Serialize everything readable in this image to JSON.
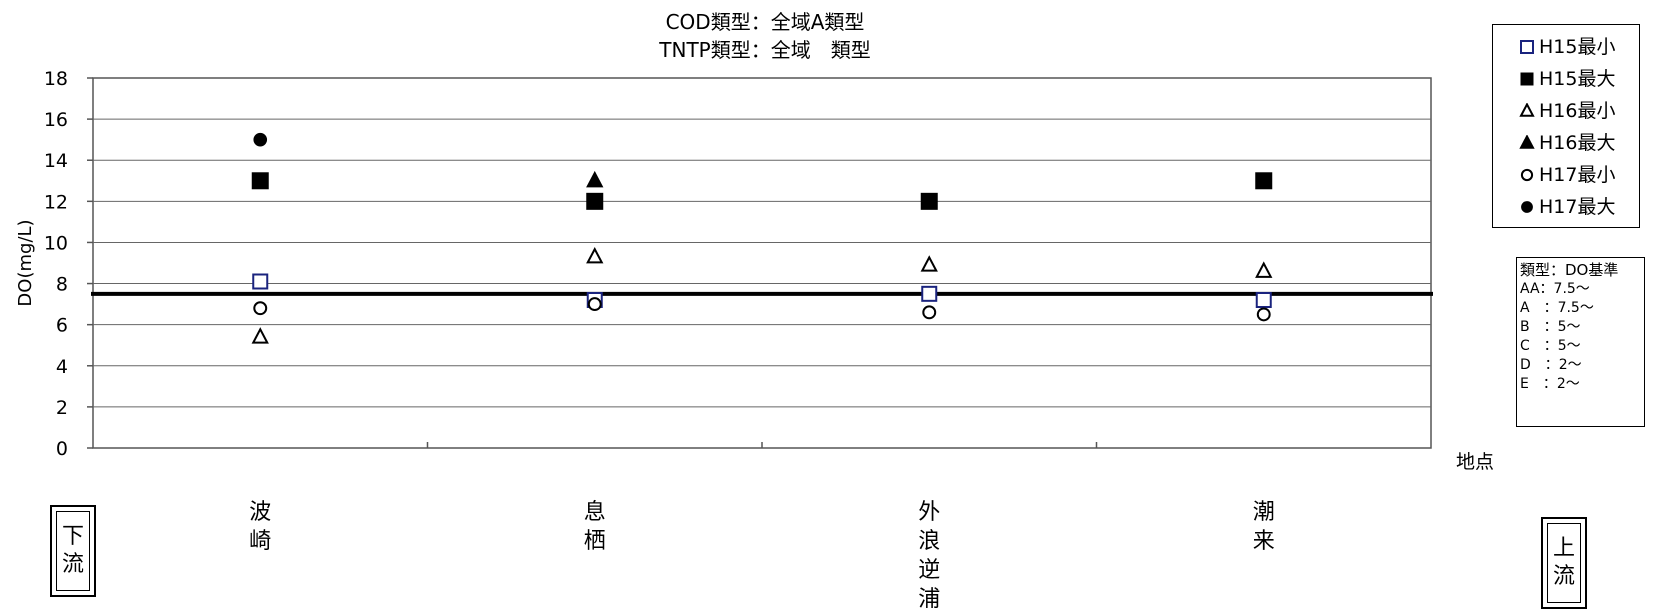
{
  "chart_data": {
    "type": "scatter",
    "title": [
      "COD類型：全域A類型",
      "TNTP類型：全域　類型"
    ],
    "xlabel": "地点",
    "ylabel": "DO(mg/L)",
    "ylim": [
      0,
      18
    ],
    "yticks": [
      0,
      2,
      4,
      6,
      8,
      10,
      12,
      14,
      16,
      18
    ],
    "categories": [
      "波崎",
      "息栖",
      "外浪逆浦",
      "潮来"
    ],
    "grid": true,
    "legend_position": "top-right",
    "reference_line": 7.5,
    "series": [
      {
        "name": "H15最小",
        "marker": "square-open",
        "color": "#1a237e",
        "values": [
          8.1,
          7.2,
          7.5,
          7.2
        ]
      },
      {
        "name": "H15最大",
        "marker": "square-filled",
        "color": "#000000",
        "values": [
          13.0,
          12.0,
          12.0,
          13.0
        ]
      },
      {
        "name": "H16最小",
        "marker": "triangle-open",
        "color": "#000000",
        "values": [
          5.4,
          9.3,
          8.9,
          8.6
        ]
      },
      {
        "name": "H16最大",
        "marker": "triangle-filled",
        "color": "#000000",
        "values": [
          null,
          13.0,
          null,
          null
        ]
      },
      {
        "name": "H17最小",
        "marker": "circle-open",
        "color": "#000000",
        "values": [
          6.8,
          7.0,
          6.6,
          6.5
        ]
      },
      {
        "name": "H17最大",
        "marker": "circle-filled",
        "color": "#000000",
        "values": [
          15.0,
          null,
          null,
          null
        ]
      }
    ]
  },
  "standards": {
    "title": "類型：DO基準",
    "rows": [
      "AA：7.5～",
      "A　：7.5～",
      "B　：5～",
      "C　：5～",
      "D　：2～",
      "E　：2～"
    ]
  },
  "flow": {
    "left": [
      "下",
      "流"
    ],
    "right": [
      "上",
      "流"
    ]
  }
}
